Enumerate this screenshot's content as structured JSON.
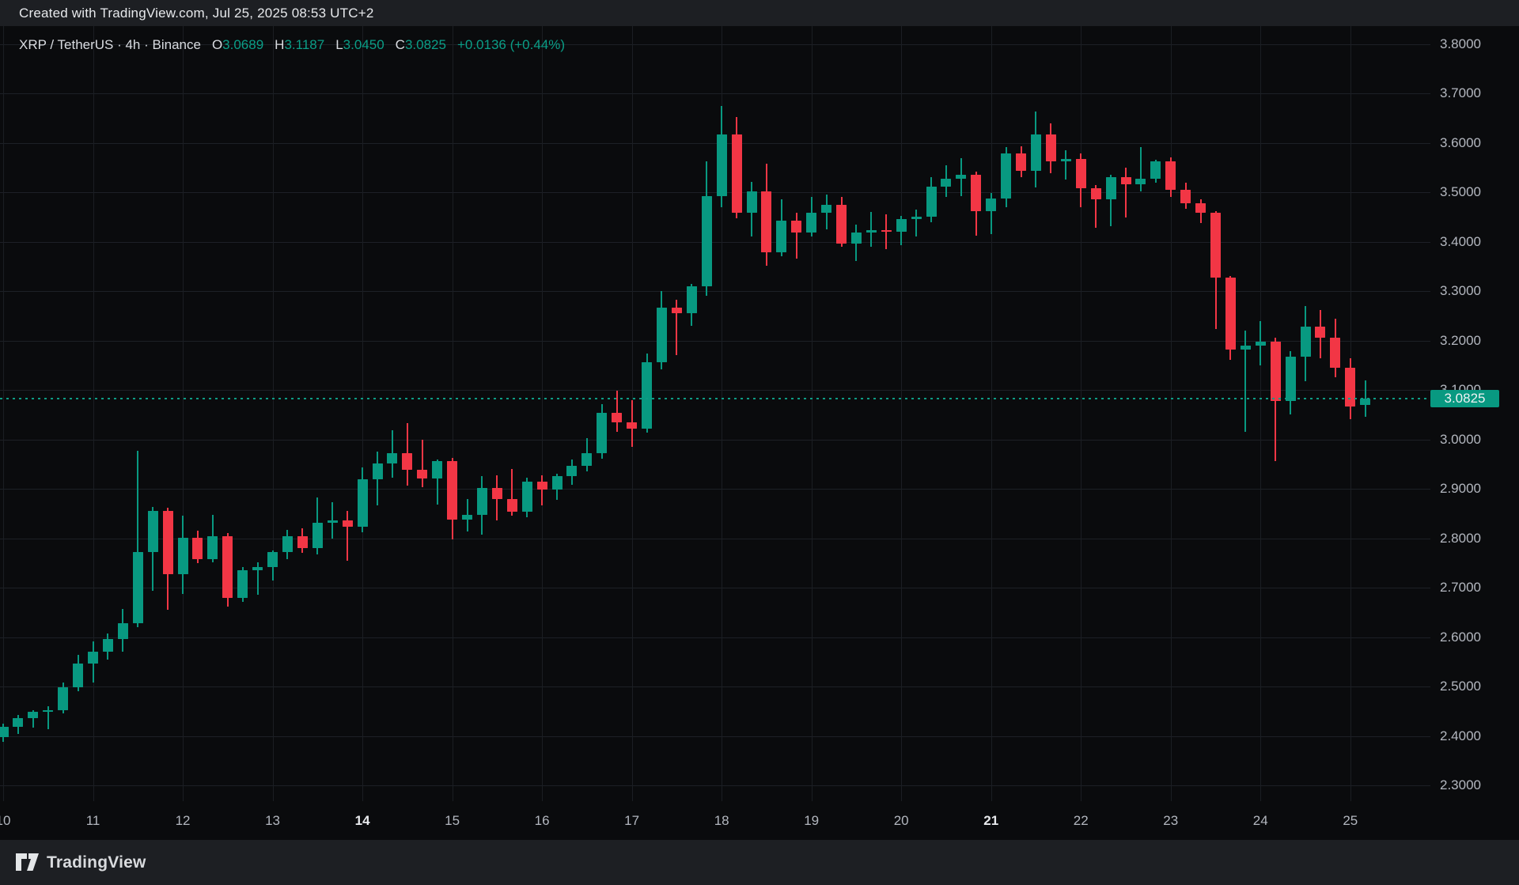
{
  "top_bar": {
    "created_line": "Created with TradingView.com, Jul 25, 2025 08:53 UTC+2"
  },
  "legend": {
    "title": "XRP / TetherUS · 4h · Binance",
    "o_label": "O",
    "o_value": "3.0689",
    "h_label": "H",
    "h_value": "3.1187",
    "l_label": "L",
    "l_value": "3.0450",
    "c_label": "C",
    "c_value": "3.0825",
    "change": "+0.0136 (+0.44%)"
  },
  "price_label": {
    "value": "3.0825"
  },
  "footer": {
    "logo_text": "TradingView"
  },
  "colors": {
    "up": "#089981",
    "down": "#f23645",
    "background": "#0a0b0d",
    "panel": "#1d1f23",
    "grid": "#1d2026",
    "axis_text": "#b3b7bf",
    "axis_text_bold": "#e8eaed",
    "legend_value": "#0a9e87",
    "last_price_line": "#0e9c85",
    "price_label_bg": "#089981",
    "price_label_text": "#eff1f3"
  },
  "chart_data": {
    "type": "candlestick",
    "title": "XRP / TetherUS",
    "interval": "4h",
    "exchange": "Binance",
    "start": "2025-07-10 00:00",
    "step_hours": 4,
    "last_price": 3.0825,
    "legend_position": "top-left",
    "grid": true,
    "y_axis": {
      "side": "right",
      "range_visible": [
        2.28,
        3.835
      ],
      "ticks": [
        {
          "price": 3.8,
          "label": "3.8000"
        },
        {
          "price": 3.7,
          "label": "3.7000"
        },
        {
          "price": 3.6,
          "label": "3.6000"
        },
        {
          "price": 3.5,
          "label": "3.5000"
        },
        {
          "price": 3.4,
          "label": "3.4000"
        },
        {
          "price": 3.3,
          "label": "3.3000"
        },
        {
          "price": 3.2,
          "label": "3.2000"
        },
        {
          "price": 3.1,
          "label": "3.1000"
        },
        {
          "price": 3.0,
          "label": "3.0000"
        },
        {
          "price": 2.9,
          "label": "2.9000"
        },
        {
          "price": 2.8,
          "label": "2.8000"
        },
        {
          "price": 2.7,
          "label": "2.7000"
        },
        {
          "price": 2.6,
          "label": "2.6000"
        },
        {
          "price": 2.5,
          "label": "2.5000"
        },
        {
          "price": 2.4,
          "label": "2.4000"
        },
        {
          "price": 2.3,
          "label": "2.3000"
        }
      ]
    },
    "x_axis": {
      "ticks": [
        {
          "label": "10",
          "index": 0,
          "bold": false
        },
        {
          "label": "11",
          "index": 6,
          "bold": false
        },
        {
          "label": "12",
          "index": 12,
          "bold": false
        },
        {
          "label": "13",
          "index": 18,
          "bold": false
        },
        {
          "label": "14",
          "index": 24,
          "bold": true
        },
        {
          "label": "15",
          "index": 30,
          "bold": false
        },
        {
          "label": "16",
          "index": 36,
          "bold": false
        },
        {
          "label": "17",
          "index": 42,
          "bold": false
        },
        {
          "label": "18",
          "index": 48,
          "bold": false
        },
        {
          "label": "19",
          "index": 54,
          "bold": false
        },
        {
          "label": "20",
          "index": 60,
          "bold": false
        },
        {
          "label": "21",
          "index": 66,
          "bold": true
        },
        {
          "label": "22",
          "index": 72,
          "bold": false
        },
        {
          "label": "23",
          "index": 78,
          "bold": false
        },
        {
          "label": "24",
          "index": 84,
          "bold": false
        },
        {
          "label": "25",
          "index": 90,
          "bold": false
        }
      ]
    },
    "candles_format": [
      "open",
      "high",
      "low",
      "close"
    ],
    "candles": [
      [
        2.398,
        2.425,
        2.388,
        2.418
      ],
      [
        2.418,
        2.442,
        2.404,
        2.436
      ],
      [
        2.436,
        2.452,
        2.417,
        2.449
      ],
      [
        2.449,
        2.46,
        2.414,
        2.452
      ],
      [
        2.452,
        2.508,
        2.445,
        2.498
      ],
      [
        2.498,
        2.564,
        2.49,
        2.546
      ],
      [
        2.546,
        2.591,
        2.508,
        2.57
      ],
      [
        2.57,
        2.607,
        2.555,
        2.596
      ],
      [
        2.596,
        2.657,
        2.57,
        2.628
      ],
      [
        2.628,
        2.977,
        2.62,
        2.772
      ],
      [
        2.772,
        2.863,
        2.694,
        2.855
      ],
      [
        2.855,
        2.862,
        2.655,
        2.728
      ],
      [
        2.728,
        2.846,
        2.688,
        2.801
      ],
      [
        2.801,
        2.815,
        2.75,
        2.758
      ],
      [
        2.758,
        2.847,
        2.752,
        2.804
      ],
      [
        2.804,
        2.81,
        2.661,
        2.68
      ],
      [
        2.68,
        2.742,
        2.672,
        2.736
      ],
      [
        2.736,
        2.752,
        2.685,
        2.742
      ],
      [
        2.742,
        2.775,
        2.715,
        2.772
      ],
      [
        2.772,
        2.817,
        2.758,
        2.804
      ],
      [
        2.804,
        2.82,
        2.771,
        2.78
      ],
      [
        2.78,
        2.882,
        2.768,
        2.832
      ],
      [
        2.832,
        2.873,
        2.8,
        2.836
      ],
      [
        2.836,
        2.855,
        2.754,
        2.824
      ],
      [
        2.824,
        2.943,
        2.812,
        2.92
      ],
      [
        2.92,
        2.975,
        2.867,
        2.952
      ],
      [
        2.952,
        3.018,
        2.923,
        2.972
      ],
      [
        2.972,
        3.033,
        2.906,
        2.939
      ],
      [
        2.939,
        3.0,
        2.903,
        2.921
      ],
      [
        2.921,
        2.96,
        2.868,
        2.956
      ],
      [
        2.956,
        2.962,
        2.797,
        2.838
      ],
      [
        2.838,
        2.879,
        2.813,
        2.847
      ],
      [
        2.847,
        2.926,
        2.808,
        2.902
      ],
      [
        2.902,
        2.928,
        2.836,
        2.879
      ],
      [
        2.879,
        2.94,
        2.845,
        2.854
      ],
      [
        2.854,
        2.922,
        2.843,
        2.915
      ],
      [
        2.915,
        2.928,
        2.866,
        2.898
      ],
      [
        2.898,
        2.93,
        2.878,
        2.926
      ],
      [
        2.926,
        2.959,
        2.908,
        2.947
      ],
      [
        2.947,
        3.002,
        2.935,
        2.972
      ],
      [
        2.972,
        3.072,
        2.961,
        3.054
      ],
      [
        3.054,
        3.098,
        3.016,
        3.034
      ],
      [
        3.034,
        3.08,
        2.985,
        3.021
      ],
      [
        3.021,
        3.174,
        3.013,
        3.156
      ],
      [
        3.156,
        3.3,
        3.141,
        3.267
      ],
      [
        3.267,
        3.282,
        3.17,
        3.256
      ],
      [
        3.256,
        3.315,
        3.229,
        3.31
      ],
      [
        3.31,
        3.562,
        3.29,
        3.492
      ],
      [
        3.492,
        3.674,
        3.47,
        3.617
      ],
      [
        3.617,
        3.652,
        3.448,
        3.459
      ],
      [
        3.459,
        3.521,
        3.411,
        3.502
      ],
      [
        3.502,
        3.557,
        3.351,
        3.379
      ],
      [
        3.379,
        3.485,
        3.371,
        3.443
      ],
      [
        3.443,
        3.459,
        3.366,
        3.418
      ],
      [
        3.418,
        3.49,
        3.41,
        3.459
      ],
      [
        3.459,
        3.495,
        3.425,
        3.475
      ],
      [
        3.475,
        3.49,
        3.39,
        3.396
      ],
      [
        3.396,
        3.434,
        3.361,
        3.418
      ],
      [
        3.418,
        3.46,
        3.39,
        3.424
      ],
      [
        3.424,
        3.455,
        3.385,
        3.42
      ],
      [
        3.42,
        3.452,
        3.393,
        3.445
      ],
      [
        3.445,
        3.465,
        3.41,
        3.45
      ],
      [
        3.45,
        3.53,
        3.44,
        3.512
      ],
      [
        3.512,
        3.554,
        3.49,
        3.527
      ],
      [
        3.527,
        3.569,
        3.492,
        3.535
      ],
      [
        3.535,
        3.541,
        3.412,
        3.461
      ],
      [
        3.461,
        3.498,
        3.416,
        3.488
      ],
      [
        3.488,
        3.592,
        3.47,
        3.579
      ],
      [
        3.579,
        3.593,
        3.53,
        3.544
      ],
      [
        3.544,
        3.664,
        3.51,
        3.617
      ],
      [
        3.617,
        3.639,
        3.539,
        3.562
      ],
      [
        3.562,
        3.585,
        3.526,
        3.568
      ],
      [
        3.568,
        3.579,
        3.47,
        3.508
      ],
      [
        3.508,
        3.515,
        3.428,
        3.486
      ],
      [
        3.486,
        3.535,
        3.432,
        3.531
      ],
      [
        3.531,
        3.549,
        3.449,
        3.516
      ],
      [
        3.516,
        3.592,
        3.502,
        3.527
      ],
      [
        3.527,
        3.565,
        3.52,
        3.562
      ],
      [
        3.562,
        3.57,
        3.49,
        3.505
      ],
      [
        3.505,
        3.52,
        3.467,
        3.477
      ],
      [
        3.477,
        3.485,
        3.438,
        3.459
      ],
      [
        3.459,
        3.462,
        3.223,
        3.328
      ],
      [
        3.328,
        3.33,
        3.161,
        3.181
      ],
      [
        3.181,
        3.22,
        3.016,
        3.19
      ],
      [
        3.19,
        3.239,
        3.149,
        3.197
      ],
      [
        3.197,
        3.205,
        2.956,
        3.078
      ],
      [
        3.078,
        3.179,
        3.051,
        3.167
      ],
      [
        3.167,
        3.269,
        3.118,
        3.228
      ],
      [
        3.228,
        3.262,
        3.164,
        3.205
      ],
      [
        3.205,
        3.244,
        3.125,
        3.145
      ],
      [
        3.145,
        3.164,
        3.041,
        3.066
      ],
      [
        3.0689,
        3.1187,
        3.045,
        3.0825
      ]
    ]
  }
}
